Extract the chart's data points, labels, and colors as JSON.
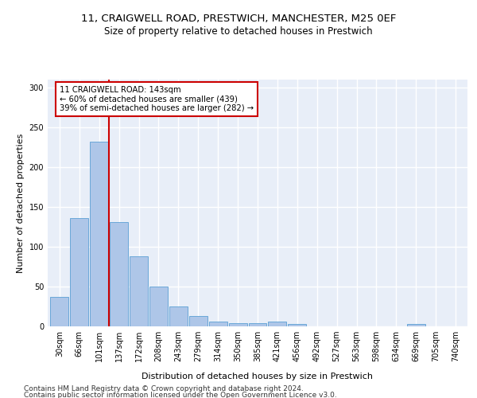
{
  "title_line1": "11, CRAIGWELL ROAD, PRESTWICH, MANCHESTER, M25 0EF",
  "title_line2": "Size of property relative to detached houses in Prestwich",
  "xlabel": "Distribution of detached houses by size in Prestwich",
  "ylabel": "Number of detached properties",
  "categories": [
    "30sqm",
    "66sqm",
    "101sqm",
    "137sqm",
    "172sqm",
    "208sqm",
    "243sqm",
    "279sqm",
    "314sqm",
    "350sqm",
    "385sqm",
    "421sqm",
    "456sqm",
    "492sqm",
    "527sqm",
    "563sqm",
    "598sqm",
    "634sqm",
    "669sqm",
    "705sqm",
    "740sqm"
  ],
  "values": [
    37,
    136,
    232,
    131,
    88,
    50,
    25,
    13,
    6,
    4,
    4,
    6,
    3,
    0,
    0,
    0,
    0,
    0,
    3,
    0,
    0
  ],
  "bar_color": "#aec6e8",
  "bar_edge_color": "#5a9fd4",
  "vline_x": 2.5,
  "annotation_text": "11 CRAIGWELL ROAD: 143sqm\n← 60% of detached houses are smaller (439)\n39% of semi-detached houses are larger (282) →",
  "annotation_box_color": "#ffffff",
  "annotation_box_edge": "#cc0000",
  "vline_color": "#cc0000",
  "ylim": [
    0,
    310
  ],
  "yticks": [
    0,
    50,
    100,
    150,
    200,
    250,
    300
  ],
  "bg_color": "#e8eef8",
  "grid_color": "#ffffff",
  "title_fontsize": 9.5,
  "subtitle_fontsize": 8.5,
  "axis_label_fontsize": 8,
  "tick_fontsize": 7,
  "footer_fontsize": 6.5,
  "footer_line1": "Contains HM Land Registry data © Crown copyright and database right 2024.",
  "footer_line2": "Contains public sector information licensed under the Open Government Licence v3.0."
}
